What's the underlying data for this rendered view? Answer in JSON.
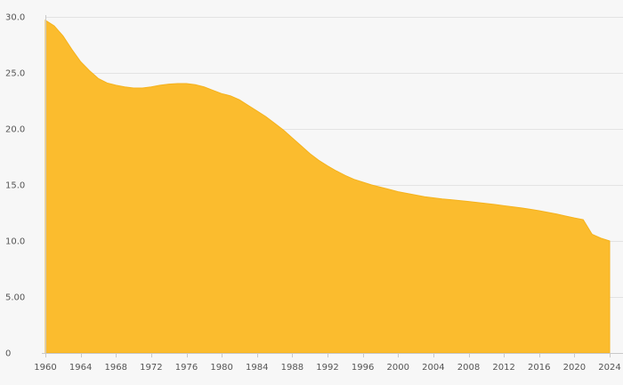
{
  "chart_data": {
    "type": "area",
    "title": "",
    "xlabel": "",
    "ylabel": "",
    "xlim": [
      1960,
      2024
    ],
    "ylim": [
      0,
      30
    ],
    "grid": true,
    "legend": "none",
    "color": "#fbbc2e",
    "y_ticks": [
      {
        "value": 0,
        "label": "0"
      },
      {
        "value": 5,
        "label": "5.00"
      },
      {
        "value": 10,
        "label": "10.0"
      },
      {
        "value": 15,
        "label": "15.0"
      },
      {
        "value": 20,
        "label": "20.0"
      },
      {
        "value": 25,
        "label": "25.0"
      },
      {
        "value": 30,
        "label": "30.0"
      }
    ],
    "x_ticks": [
      {
        "value": 1960,
        "label": "1960"
      },
      {
        "value": 1964,
        "label": "1964"
      },
      {
        "value": 1968,
        "label": "1968"
      },
      {
        "value": 1972,
        "label": "1972"
      },
      {
        "value": 1976,
        "label": "1976"
      },
      {
        "value": 1980,
        "label": "1980"
      },
      {
        "value": 1984,
        "label": "1984"
      },
      {
        "value": 1988,
        "label": "1988"
      },
      {
        "value": 1992,
        "label": "1992"
      },
      {
        "value": 1996,
        "label": "1996"
      },
      {
        "value": 2000,
        "label": "2000"
      },
      {
        "value": 2004,
        "label": "2004"
      },
      {
        "value": 2008,
        "label": "2008"
      },
      {
        "value": 2012,
        "label": "2012"
      },
      {
        "value": 2016,
        "label": "2016"
      },
      {
        "value": 2020,
        "label": "2020"
      },
      {
        "value": 2024,
        "label": "2024"
      }
    ],
    "series": [
      {
        "x": [
          1960,
          1961,
          1962,
          1963,
          1964,
          1965,
          1966,
          1967,
          1968,
          1969,
          1970,
          1971,
          1972,
          1973,
          1974,
          1975,
          1976,
          1977,
          1978,
          1979,
          1980,
          1981,
          1982,
          1983,
          1984,
          1985,
          1986,
          1987,
          1988,
          1989,
          1990,
          1991,
          1992,
          1993,
          1994,
          1995,
          1996,
          1997,
          1998,
          1999,
          2000,
          2001,
          2002,
          2003,
          2004,
          2005,
          2006,
          2007,
          2008,
          2009,
          2010,
          2011,
          2012,
          2013,
          2014,
          2015,
          2016,
          2017,
          2018,
          2019,
          2020,
          2021,
          2022,
          2023,
          2024
        ],
        "values": [
          29.7,
          29.2,
          28.3,
          27.1,
          26.0,
          25.2,
          24.5,
          24.1,
          23.9,
          23.75,
          23.65,
          23.65,
          23.75,
          23.9,
          24.0,
          24.05,
          24.05,
          23.95,
          23.75,
          23.45,
          23.15,
          22.95,
          22.6,
          22.1,
          21.6,
          21.1,
          20.5,
          19.9,
          19.2,
          18.5,
          17.8,
          17.2,
          16.7,
          16.25,
          15.85,
          15.5,
          15.25,
          15.0,
          14.8,
          14.6,
          14.4,
          14.25,
          14.1,
          13.95,
          13.85,
          13.75,
          13.68,
          13.6,
          13.52,
          13.43,
          13.34,
          13.25,
          13.15,
          13.05,
          12.95,
          12.83,
          12.7,
          12.55,
          12.4,
          12.22,
          12.05,
          11.9,
          10.6,
          10.25,
          10.0
        ]
      }
    ]
  }
}
